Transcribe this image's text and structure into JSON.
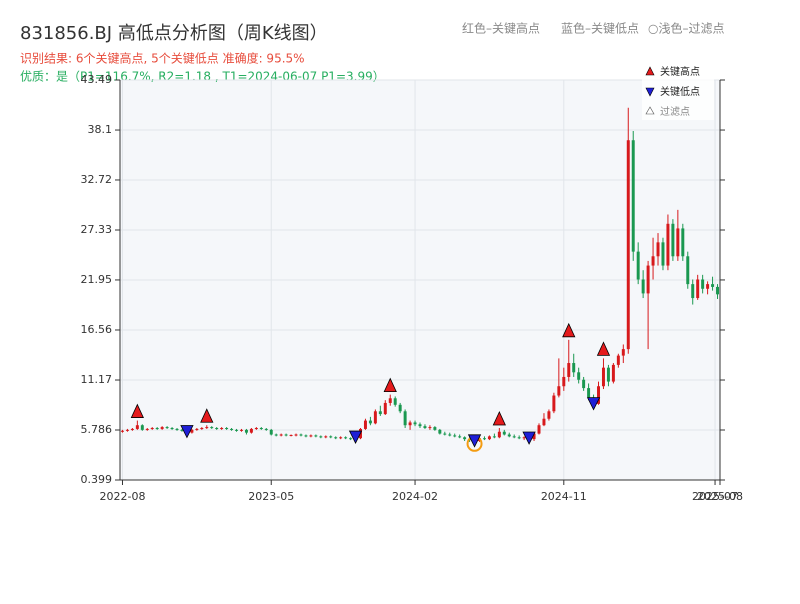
{
  "chart_data": {
    "type": "candlestick",
    "title": "831856.BJ 高低点分析图（周K线图）",
    "subtitle": "识别结果: 6个关键高点, 5个关键低点  准确度: 95.5%",
    "quality_note": "优质：是（P1=116.7%, R2=1.18 , T1=2024-06-07 P1=3.99）",
    "top_legend": [
      "红色–关键高点",
      "蓝色–关键低点",
      "○浅色–过滤点"
    ],
    "up_color": "#d7191c",
    "down_color": "#1a9850",
    "xlim": [
      -0.5,
      120.5
    ],
    "xticks": [
      {
        "value": 0,
        "label": "2022-08"
      },
      {
        "value": 30,
        "label": "2023-05"
      },
      {
        "value": 59,
        "label": "2024-02"
      },
      {
        "value": 89,
        "label": "2024-11"
      },
      {
        "value": 119.5,
        "label": "2025-07"
      },
      {
        "value": 120.5,
        "label": "2025-08"
      }
    ],
    "ylim": [
      0.399,
      43.49
    ],
    "yticks": [
      0.399,
      5.786,
      11.17,
      16.56,
      21.95,
      27.33,
      32.72,
      38.1,
      43.49
    ],
    "grid": true,
    "open": [
      5.6,
      5.7,
      5.8,
      5.9,
      6.3,
      5.8,
      5.9,
      6.0,
      5.9,
      6.1,
      6.0,
      5.9,
      5.8,
      5.7,
      5.5,
      5.8,
      5.9,
      6.0,
      6.1,
      6.0,
      5.9,
      6.0,
      5.9,
      5.8,
      5.7,
      5.8,
      5.5,
      5.9,
      6.0,
      5.9,
      5.8,
      5.3,
      5.2,
      5.3,
      5.2,
      5.25,
      5.3,
      5.2,
      5.1,
      5.2,
      5.1,
      5.0,
      5.1,
      5.0,
      4.9,
      5.0,
      4.9,
      4.8,
      4.9,
      5.9,
      6.8,
      6.5,
      7.8,
      7.5,
      8.7,
      9.2,
      8.5,
      7.8,
      6.3,
      6.6,
      6.4,
      6.2,
      6.0,
      6.1,
      5.8,
      5.4,
      5.3,
      5.2,
      5.1,
      5.0,
      4.8,
      4.7,
      4.6,
      4.9,
      4.8,
      5.1,
      5.0,
      5.6,
      5.3,
      5.1,
      5.0,
      4.9,
      5.0,
      4.8,
      5.4,
      6.3,
      7.0,
      7.8,
      9.5,
      10.5,
      11.5,
      13.0,
      12.0,
      11.2,
      10.3,
      9.3,
      8.6,
      10.5,
      12.5,
      11.0,
      12.8,
      13.8,
      14.5,
      37.0,
      25.0,
      22.0,
      20.5,
      23.5,
      24.5,
      26.0,
      23.5,
      28.0,
      24.5,
      27.5,
      24.5,
      21.5,
      20.0,
      22.0,
      21.0,
      21.5,
      21.2
    ],
    "high": [
      5.8,
      5.9,
      6.0,
      6.8,
      6.4,
      6.0,
      6.1,
      6.1,
      6.2,
      6.2,
      6.1,
      6.0,
      5.9,
      5.8,
      5.9,
      6.0,
      6.1,
      6.3,
      6.2,
      6.1,
      6.1,
      6.1,
      6.0,
      5.9,
      5.9,
      5.9,
      6.0,
      6.1,
      6.1,
      6.0,
      5.9,
      5.4,
      5.4,
      5.4,
      5.3,
      5.4,
      5.4,
      5.3,
      5.3,
      5.3,
      5.2,
      5.2,
      5.2,
      5.1,
      5.1,
      5.1,
      5.0,
      5.0,
      6.0,
      7.0,
      7.2,
      8.0,
      8.4,
      9.0,
      9.6,
      9.4,
      8.7,
      8.0,
      6.8,
      6.8,
      6.6,
      6.4,
      6.3,
      6.2,
      5.9,
      5.6,
      5.5,
      5.4,
      5.3,
      5.1,
      5.0,
      4.8,
      5.0,
      5.1,
      5.2,
      5.4,
      6.0,
      5.8,
      5.5,
      5.3,
      5.2,
      5.1,
      5.1,
      5.5,
      6.5,
      7.6,
      8.0,
      9.8,
      13.5,
      12.5,
      15.5,
      14.0,
      12.5,
      11.5,
      10.8,
      9.6,
      11.0,
      13.5,
      12.8,
      13.0,
      14.0,
      15.0,
      40.5,
      38.0,
      26.0,
      23.0,
      24.0,
      26.5,
      27.0,
      26.5,
      29.0,
      28.5,
      29.5,
      28.0,
      25.0,
      22.0,
      22.5,
      22.5,
      21.8,
      22.3,
      21.5
    ],
    "low": [
      5.5,
      5.6,
      5.7,
      5.8,
      5.7,
      5.7,
      5.8,
      5.8,
      5.8,
      5.9,
      5.8,
      5.7,
      5.6,
      5.3,
      5.4,
      5.7,
      5.8,
      5.9,
      5.9,
      5.8,
      5.8,
      5.8,
      5.7,
      5.6,
      5.6,
      5.3,
      5.4,
      5.8,
      5.8,
      5.7,
      5.2,
      5.1,
      5.1,
      5.1,
      5.1,
      5.1,
      5.1,
      5.0,
      5.0,
      5.0,
      4.9,
      4.9,
      4.9,
      4.8,
      4.8,
      4.8,
      4.7,
      4.7,
      4.8,
      5.8,
      6.3,
      6.4,
      7.3,
      7.4,
      8.4,
      8.3,
      7.6,
      6.0,
      5.8,
      6.2,
      6.0,
      5.9,
      5.8,
      5.7,
      5.3,
      5.2,
      5.1,
      5.0,
      4.9,
      4.6,
      4.5,
      4.3,
      4.5,
      4.7,
      4.7,
      4.9,
      4.9,
      5.2,
      5.0,
      4.9,
      4.8,
      4.7,
      4.6,
      4.6,
      5.3,
      6.2,
      6.8,
      7.6,
      9.3,
      10.0,
      11.0,
      11.5,
      10.8,
      10.0,
      9.0,
      8.3,
      8.5,
      10.2,
      10.5,
      10.8,
      12.5,
      13.0,
      14.0,
      24.0,
      21.5,
      20.0,
      14.5,
      22.0,
      23.5,
      23.0,
      23.0,
      24.0,
      24.0,
      24.0,
      21.0,
      19.3,
      19.8,
      20.5,
      20.4,
      20.8,
      19.9
    ],
    "close": [
      5.7,
      5.8,
      5.9,
      6.3,
      5.8,
      5.9,
      6.0,
      5.9,
      6.1,
      6.0,
      5.9,
      5.8,
      5.7,
      5.5,
      5.8,
      5.9,
      6.0,
      6.1,
      6.0,
      5.9,
      6.0,
      5.9,
      5.8,
      5.7,
      5.8,
      5.5,
      5.9,
      6.0,
      5.9,
      5.8,
      5.3,
      5.2,
      5.3,
      5.2,
      5.25,
      5.3,
      5.2,
      5.1,
      5.2,
      5.1,
      5.0,
      5.1,
      5.0,
      4.9,
      5.0,
      4.9,
      4.8,
      4.9,
      5.9,
      6.8,
      6.5,
      7.8,
      7.5,
      8.7,
      9.2,
      8.5,
      7.8,
      6.3,
      6.6,
      6.4,
      6.2,
      6.0,
      6.1,
      5.8,
      5.4,
      5.3,
      5.2,
      5.1,
      5.0,
      4.8,
      4.7,
      4.6,
      4.9,
      4.8,
      5.1,
      5.0,
      5.6,
      5.3,
      5.1,
      5.0,
      4.9,
      5.0,
      4.8,
      5.4,
      6.3,
      7.0,
      7.8,
      9.5,
      10.5,
      11.5,
      13.0,
      12.0,
      11.2,
      10.3,
      9.3,
      8.6,
      10.5,
      12.5,
      11.0,
      12.8,
      13.8,
      14.5,
      37.0,
      25.0,
      22.0,
      20.5,
      23.5,
      24.5,
      26.0,
      23.5,
      28.0,
      24.5,
      27.5,
      24.5,
      21.5,
      20.0,
      22.0,
      21.0,
      21.5,
      21.2,
      20.4
    ],
    "key_highs": {
      "name": "关键高点",
      "color": "#e41a1c",
      "x": [
        3,
        17,
        54,
        76,
        90,
        97
      ],
      "values": [
        6.8,
        6.3,
        9.6,
        6.0,
        15.5,
        13.5
      ]
    },
    "key_lows": {
      "name": "关键低点",
      "color": "#1f1fd6",
      "x": [
        13,
        47,
        71,
        82,
        95
      ],
      "values": [
        5.3,
        4.7,
        4.3,
        4.6,
        8.3
      ]
    },
    "filtered": {
      "name": "过滤点",
      "color": "#ffffff"
    },
    "highlight": {
      "color": "#f39c12",
      "x": 71,
      "value": 4.3
    }
  }
}
